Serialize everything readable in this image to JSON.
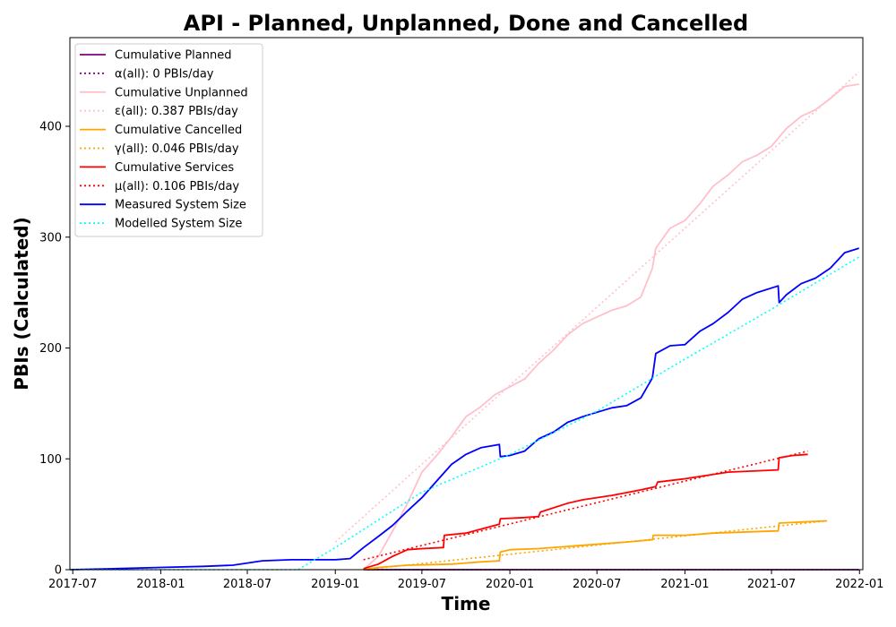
{
  "chart_data": {
    "type": "line",
    "title": "API - Planned, Unplanned, Done  and Cancelled",
    "xlabel": "Time",
    "ylabel": "PBIs (Calculated)",
    "xlim": [
      "2017-06-25",
      "2022-01-08"
    ],
    "ylim": [
      0,
      480
    ],
    "x_ticks": [
      "2017-07",
      "2018-01",
      "2018-07",
      "2019-01",
      "2019-07",
      "2020-01",
      "2020-07",
      "2021-01",
      "2021-07",
      "2022-01"
    ],
    "y_ticks": [
      0,
      100,
      200,
      300,
      400
    ],
    "grid": false,
    "legend_position": "top-left",
    "series": [
      {
        "name": "Cumulative Planned",
        "color": "#800080",
        "style": "solid",
        "points": [
          [
            "2019-03-01",
            0
          ],
          [
            "2021-12-31",
            0
          ]
        ]
      },
      {
        "name": "α(all): 0 PBIs/day",
        "color": "#800080",
        "style": "dotted",
        "points": [
          [
            "2019-03-01",
            0
          ],
          [
            "2021-12-31",
            0
          ]
        ]
      },
      {
        "name": "Cumulative Unplanned",
        "color": "#ffc0cb",
        "style": "solid",
        "points": [
          [
            "2019-03-01",
            0
          ],
          [
            "2019-04-01",
            12
          ],
          [
            "2019-05-01",
            35
          ],
          [
            "2019-06-01",
            60
          ],
          [
            "2019-07-01",
            88
          ],
          [
            "2019-08-01",
            103
          ],
          [
            "2019-09-01",
            120
          ],
          [
            "2019-10-01",
            138
          ],
          [
            "2019-11-01",
            147
          ],
          [
            "2019-12-01",
            158
          ],
          [
            "2020-01-01",
            165
          ],
          [
            "2020-02-01",
            172
          ],
          [
            "2020-03-01",
            186
          ],
          [
            "2020-04-01",
            198
          ],
          [
            "2020-05-01",
            212
          ],
          [
            "2020-06-01",
            222
          ],
          [
            "2020-07-01",
            228
          ],
          [
            "2020-08-01",
            234
          ],
          [
            "2020-09-01",
            238
          ],
          [
            "2020-10-01",
            246
          ],
          [
            "2020-10-25",
            272
          ],
          [
            "2020-11-01",
            290
          ],
          [
            "2020-12-01",
            308
          ],
          [
            "2021-01-01",
            315
          ],
          [
            "2021-02-01",
            330
          ],
          [
            "2021-03-01",
            346
          ],
          [
            "2021-04-01",
            356
          ],
          [
            "2021-05-01",
            368
          ],
          [
            "2021-06-01",
            374
          ],
          [
            "2021-07-01",
            382
          ],
          [
            "2021-08-01",
            398
          ],
          [
            "2021-09-01",
            409
          ],
          [
            "2021-10-01",
            415
          ],
          [
            "2021-11-01",
            425
          ],
          [
            "2021-12-01",
            436
          ],
          [
            "2021-12-31",
            438
          ]
        ]
      },
      {
        "name": "ε(all): 0.387 PBIs/day",
        "color": "#ffc0cb",
        "style": "dotted",
        "points": [
          [
            "2019-01-01",
            25
          ],
          [
            "2021-12-31",
            449
          ]
        ]
      },
      {
        "name": "Cumulative Cancelled",
        "color": "#ffa500",
        "style": "solid",
        "points": [
          [
            "2019-03-01",
            0
          ],
          [
            "2019-04-01",
            2
          ],
          [
            "2019-06-01",
            4
          ],
          [
            "2019-09-01",
            5
          ],
          [
            "2019-11-01",
            7
          ],
          [
            "2019-12-10",
            8
          ],
          [
            "2019-12-12",
            16
          ],
          [
            "2020-01-01",
            18
          ],
          [
            "2020-03-01",
            19
          ],
          [
            "2020-06-01",
            22
          ],
          [
            "2020-09-01",
            25
          ],
          [
            "2020-10-25",
            27
          ],
          [
            "2020-10-27",
            31
          ],
          [
            "2021-01-01",
            31
          ],
          [
            "2021-03-01",
            33
          ],
          [
            "2021-07-15",
            35
          ],
          [
            "2021-07-17",
            42
          ],
          [
            "2021-09-01",
            43
          ],
          [
            "2021-10-25",
            44
          ]
        ]
      },
      {
        "name": "γ(all): 0.046 PBIs/day",
        "color": "#ffa500",
        "style": "dotted",
        "points": [
          [
            "2019-03-01",
            0
          ],
          [
            "2021-10-25",
            44
          ]
        ]
      },
      {
        "name": "Cumulative Services",
        "color": "#ff0000",
        "style": "solid",
        "points": [
          [
            "2019-03-01",
            1
          ],
          [
            "2019-04-01",
            5
          ],
          [
            "2019-05-01",
            12
          ],
          [
            "2019-06-01",
            18
          ],
          [
            "2019-07-01",
            19
          ],
          [
            "2019-08-15",
            20
          ],
          [
            "2019-08-17",
            31
          ],
          [
            "2019-10-01",
            33
          ],
          [
            "2019-12-01",
            40
          ],
          [
            "2019-12-10",
            41
          ],
          [
            "2019-12-12",
            46
          ],
          [
            "2020-02-01",
            47
          ],
          [
            "2020-03-01",
            48
          ],
          [
            "2020-03-05",
            52
          ],
          [
            "2020-05-01",
            60
          ],
          [
            "2020-06-01",
            63
          ],
          [
            "2020-08-01",
            67
          ],
          [
            "2020-10-01",
            72
          ],
          [
            "2020-11-01",
            75
          ],
          [
            "2020-11-05",
            79
          ],
          [
            "2021-01-01",
            82
          ],
          [
            "2021-04-01",
            88
          ],
          [
            "2021-07-15",
            90
          ],
          [
            "2021-07-17",
            101
          ],
          [
            "2021-08-15",
            103
          ],
          [
            "2021-09-15",
            104
          ]
        ]
      },
      {
        "name": "μ(all): 0.106 PBIs/day",
        "color": "#ff0000",
        "style": "dotted",
        "points": [
          [
            "2019-03-01",
            9
          ],
          [
            "2021-09-15",
            107
          ]
        ]
      },
      {
        "name": "Measured System Size",
        "color": "#0000ff",
        "style": "solid",
        "points": [
          [
            "2017-06-25",
            0
          ],
          [
            "2017-10-01",
            1
          ],
          [
            "2018-01-01",
            2
          ],
          [
            "2018-04-01",
            3
          ],
          [
            "2018-06-01",
            4
          ],
          [
            "2018-07-01",
            6
          ],
          [
            "2018-08-01",
            8
          ],
          [
            "2018-10-01",
            9
          ],
          [
            "2019-01-01",
            9
          ],
          [
            "2019-02-01",
            10
          ],
          [
            "2019-03-01",
            20
          ],
          [
            "2019-04-01",
            30
          ],
          [
            "2019-05-01",
            40
          ],
          [
            "2019-06-01",
            53
          ],
          [
            "2019-07-01",
            65
          ],
          [
            "2019-08-01",
            80
          ],
          [
            "2019-09-01",
            95
          ],
          [
            "2019-10-01",
            104
          ],
          [
            "2019-11-01",
            110
          ],
          [
            "2019-12-10",
            113
          ],
          [
            "2019-12-12",
            102
          ],
          [
            "2020-01-01",
            103
          ],
          [
            "2020-02-01",
            107
          ],
          [
            "2020-03-01",
            118
          ],
          [
            "2020-04-01",
            124
          ],
          [
            "2020-05-01",
            133
          ],
          [
            "2020-06-01",
            138
          ],
          [
            "2020-07-01",
            142
          ],
          [
            "2020-08-01",
            146
          ],
          [
            "2020-09-01",
            148
          ],
          [
            "2020-10-01",
            155
          ],
          [
            "2020-10-25",
            173
          ],
          [
            "2020-11-01",
            195
          ],
          [
            "2020-12-01",
            202
          ],
          [
            "2021-01-01",
            203
          ],
          [
            "2021-02-01",
            215
          ],
          [
            "2021-03-01",
            222
          ],
          [
            "2021-04-01",
            232
          ],
          [
            "2021-05-01",
            244
          ],
          [
            "2021-06-01",
            250
          ],
          [
            "2021-07-15",
            256
          ],
          [
            "2021-07-17",
            241
          ],
          [
            "2021-08-01",
            248
          ],
          [
            "2021-09-01",
            258
          ],
          [
            "2021-10-01",
            263
          ],
          [
            "2021-11-01",
            272
          ],
          [
            "2021-12-01",
            286
          ],
          [
            "2021-12-31",
            290
          ]
        ]
      },
      {
        "name": "Modelled System Size",
        "color": "#00ffff",
        "style": "dotted",
        "points": [
          [
            "2017-06-25",
            0
          ],
          [
            "2018-10-15",
            0
          ],
          [
            "2019-01-01",
            20
          ],
          [
            "2019-07-01",
            70
          ],
          [
            "2020-01-01",
            104
          ],
          [
            "2020-07-01",
            143
          ],
          [
            "2021-01-01",
            190
          ],
          [
            "2021-07-01",
            235
          ],
          [
            "2021-12-31",
            282
          ]
        ]
      }
    ]
  }
}
